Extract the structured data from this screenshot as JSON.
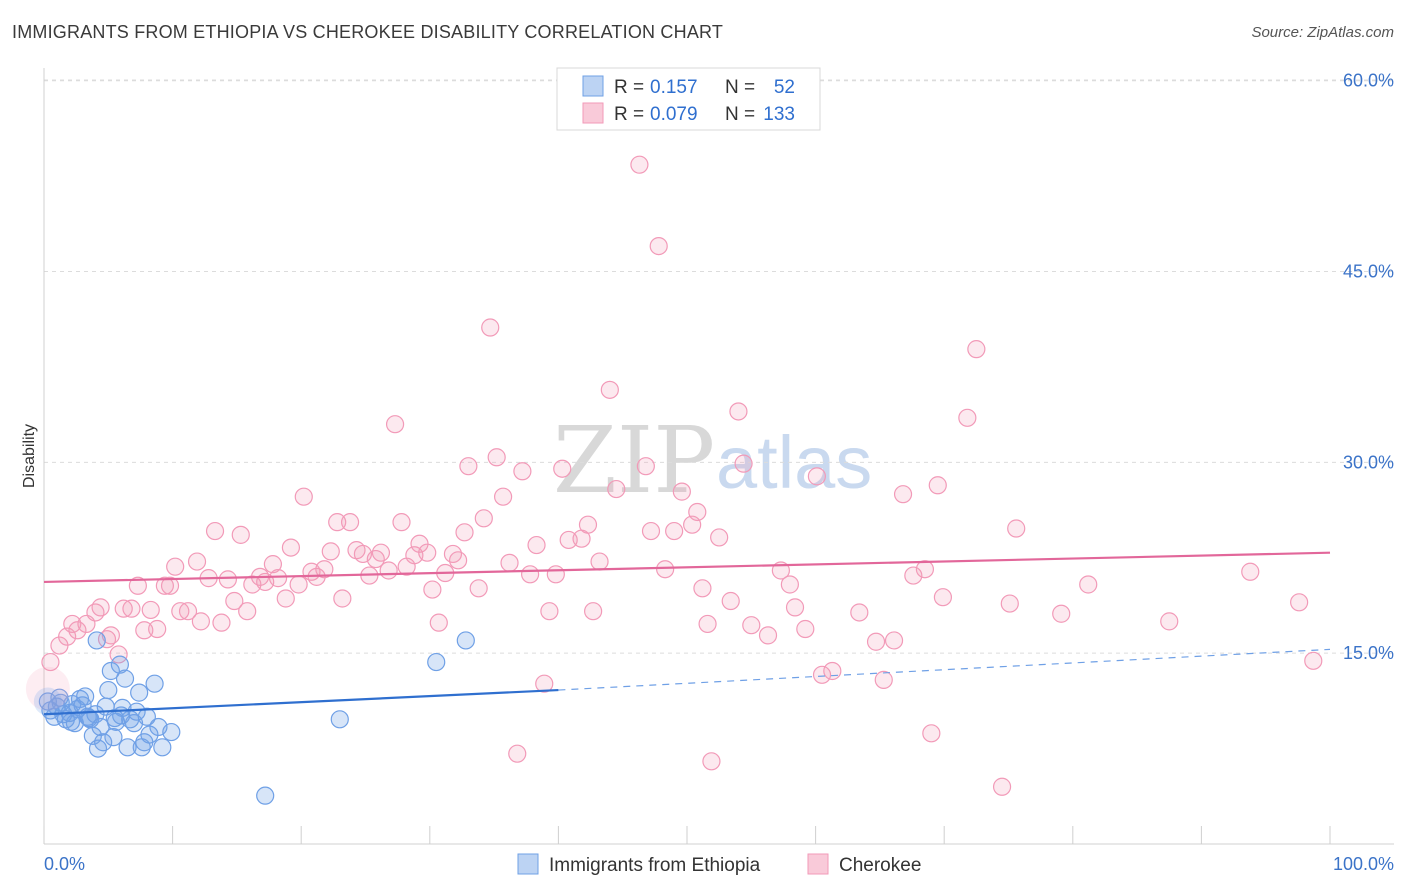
{
  "header": {
    "title": "IMMIGRANTS FROM ETHIOPIA VS CHEROKEE DISABILITY CORRELATION CHART",
    "source": "Source: ZipAtlas.com"
  },
  "watermark": {
    "zip": "ZIP",
    "atlas": "atlas"
  },
  "legend": {
    "r_label": "R =",
    "n_label": "N =",
    "rows": [
      {
        "r": "0.157",
        "n": "52",
        "color": "#6fa0e6"
      },
      {
        "r": "0.079",
        "n": "133",
        "color": "#f29ab8"
      }
    ]
  },
  "chart_data": {
    "type": "scatter",
    "title": "IMMIGRANTS FROM ETHIOPIA VS CHEROKEE DISABILITY CORRELATION CHART",
    "xlabel": "",
    "ylabel": "Disability",
    "xlim": [
      0,
      100
    ],
    "ylim": [
      0,
      61.0
    ],
    "x_tick_labels": [
      "0.0%",
      "100.0%"
    ],
    "y_ticks": [
      15,
      30,
      45,
      60
    ],
    "y_tick_labels": [
      "15.0%",
      "30.0%",
      "45.0%",
      "60.0%"
    ],
    "grid": true,
    "legend_position": "top-center",
    "series": [
      {
        "name": "Immigrants from Ethiopia",
        "color": "#6fa0e6",
        "trend": {
          "x": [
            0,
            40
          ],
          "y": [
            10.2,
            12.1
          ],
          "dashed_to": [
            100,
            15.3
          ]
        },
        "points": [
          [
            0.3,
            11.2
          ],
          [
            0.5,
            10.5
          ],
          [
            0.8,
            10.0
          ],
          [
            1.0,
            10.8
          ],
          [
            1.2,
            11.5
          ],
          [
            1.5,
            10.2
          ],
          [
            1.7,
            9.8
          ],
          [
            2.0,
            10.3
          ],
          [
            2.2,
            11.0
          ],
          [
            2.4,
            9.5
          ],
          [
            2.6,
            10.6
          ],
          [
            2.8,
            11.4
          ],
          [
            3.0,
            10.9
          ],
          [
            3.2,
            11.6
          ],
          [
            3.4,
            10.0
          ],
          [
            3.6,
            9.8
          ],
          [
            3.8,
            8.5
          ],
          [
            4.0,
            10.2
          ],
          [
            4.2,
            7.5
          ],
          [
            4.4,
            9.2
          ],
          [
            4.6,
            8.0
          ],
          [
            4.8,
            10.8
          ],
          [
            5.0,
            12.1
          ],
          [
            5.2,
            13.6
          ],
          [
            5.4,
            8.4
          ],
          [
            5.6,
            9.6
          ],
          [
            5.9,
            14.1
          ],
          [
            6.1,
            10.7
          ],
          [
            6.3,
            13.0
          ],
          [
            6.5,
            7.6
          ],
          [
            6.7,
            9.8
          ],
          [
            7.0,
            9.5
          ],
          [
            7.2,
            10.4
          ],
          [
            7.4,
            11.9
          ],
          [
            7.6,
            7.6
          ],
          [
            7.8,
            8.0
          ],
          [
            8.0,
            10.0
          ],
          [
            8.2,
            8.6
          ],
          [
            8.6,
            12.6
          ],
          [
            8.9,
            9.2
          ],
          [
            9.2,
            7.6
          ],
          [
            9.9,
            8.8
          ],
          [
            4.1,
            16.0
          ],
          [
            17.2,
            3.8
          ],
          [
            23.0,
            9.8
          ],
          [
            30.5,
            14.3
          ],
          [
            32.8,
            16.0
          ],
          [
            1.3,
            11.1
          ],
          [
            2.1,
            9.6
          ],
          [
            3.5,
            9.9
          ],
          [
            6.0,
            10.1
          ],
          [
            5.5,
            9.9
          ]
        ]
      },
      {
        "name": "Cherokee",
        "color": "#f29ab8",
        "trend": {
          "x": [
            0,
            100
          ],
          "y": [
            20.6,
            22.9
          ]
        },
        "points": [
          [
            0.5,
            14.3
          ],
          [
            1.2,
            15.6
          ],
          [
            1.8,
            16.3
          ],
          [
            2.2,
            17.3
          ],
          [
            2.6,
            16.8
          ],
          [
            3.3,
            17.3
          ],
          [
            4.0,
            18.2
          ],
          [
            4.4,
            18.6
          ],
          [
            4.9,
            16.1
          ],
          [
            5.2,
            16.4
          ],
          [
            5.8,
            14.9
          ],
          [
            6.2,
            18.5
          ],
          [
            6.8,
            18.5
          ],
          [
            7.3,
            20.3
          ],
          [
            7.8,
            16.8
          ],
          [
            8.3,
            18.4
          ],
          [
            8.8,
            16.9
          ],
          [
            9.4,
            20.3
          ],
          [
            9.8,
            20.3
          ],
          [
            10.2,
            21.8
          ],
          [
            10.6,
            18.3
          ],
          [
            11.2,
            18.3
          ],
          [
            11.9,
            22.2
          ],
          [
            12.2,
            17.5
          ],
          [
            12.8,
            20.9
          ],
          [
            13.3,
            24.6
          ],
          [
            13.8,
            17.4
          ],
          [
            14.3,
            20.8
          ],
          [
            14.8,
            19.1
          ],
          [
            15.3,
            24.3
          ],
          [
            15.8,
            18.3
          ],
          [
            16.2,
            20.4
          ],
          [
            16.8,
            21.0
          ],
          [
            17.2,
            20.6
          ],
          [
            17.8,
            22.0
          ],
          [
            18.2,
            20.9
          ],
          [
            18.8,
            19.3
          ],
          [
            19.2,
            23.3
          ],
          [
            19.8,
            20.4
          ],
          [
            20.2,
            27.3
          ],
          [
            20.8,
            21.4
          ],
          [
            21.2,
            21.0
          ],
          [
            21.8,
            21.6
          ],
          [
            22.3,
            23.0
          ],
          [
            22.8,
            25.3
          ],
          [
            23.2,
            19.3
          ],
          [
            23.8,
            25.3
          ],
          [
            24.3,
            23.1
          ],
          [
            24.8,
            22.8
          ],
          [
            25.3,
            21.1
          ],
          [
            25.8,
            22.4
          ],
          [
            26.2,
            22.9
          ],
          [
            26.8,
            21.5
          ],
          [
            27.3,
            33.0
          ],
          [
            27.8,
            25.3
          ],
          [
            28.2,
            21.8
          ],
          [
            28.8,
            22.7
          ],
          [
            29.2,
            23.6
          ],
          [
            29.8,
            22.9
          ],
          [
            30.2,
            20.0
          ],
          [
            30.7,
            17.4
          ],
          [
            31.2,
            21.3
          ],
          [
            31.8,
            22.8
          ],
          [
            32.2,
            22.3
          ],
          [
            32.7,
            24.5
          ],
          [
            33.0,
            29.7
          ],
          [
            33.8,
            20.1
          ],
          [
            34.2,
            25.6
          ],
          [
            34.7,
            40.6
          ],
          [
            35.2,
            30.4
          ],
          [
            35.7,
            27.3
          ],
          [
            36.2,
            22.1
          ],
          [
            36.8,
            7.1
          ],
          [
            37.2,
            29.3
          ],
          [
            37.8,
            21.2
          ],
          [
            38.3,
            23.5
          ],
          [
            38.9,
            12.6
          ],
          [
            39.3,
            18.3
          ],
          [
            39.8,
            21.2
          ],
          [
            40.3,
            29.5
          ],
          [
            40.8,
            23.9
          ],
          [
            41.8,
            24.0
          ],
          [
            42.3,
            25.1
          ],
          [
            42.7,
            18.3
          ],
          [
            43.2,
            22.2
          ],
          [
            44.0,
            35.7
          ],
          [
            44.5,
            27.9
          ],
          [
            46.3,
            53.4
          ],
          [
            46.8,
            29.7
          ],
          [
            47.2,
            24.6
          ],
          [
            47.8,
            47.0
          ],
          [
            48.3,
            21.6
          ],
          [
            49.0,
            24.6
          ],
          [
            49.6,
            27.7
          ],
          [
            50.4,
            25.1
          ],
          [
            50.8,
            26.1
          ],
          [
            51.2,
            20.1
          ],
          [
            51.6,
            17.3
          ],
          [
            51.9,
            6.5
          ],
          [
            52.5,
            24.1
          ],
          [
            53.4,
            19.1
          ],
          [
            54.0,
            34.0
          ],
          [
            54.4,
            29.9
          ],
          [
            55.0,
            17.2
          ],
          [
            56.3,
            16.4
          ],
          [
            57.3,
            21.5
          ],
          [
            58.0,
            20.4
          ],
          [
            58.4,
            18.6
          ],
          [
            59.2,
            16.9
          ],
          [
            60.1,
            28.9
          ],
          [
            60.5,
            13.3
          ],
          [
            61.3,
            13.6
          ],
          [
            63.4,
            18.2
          ],
          [
            64.7,
            15.9
          ],
          [
            65.3,
            12.9
          ],
          [
            66.1,
            16.0
          ],
          [
            66.8,
            27.5
          ],
          [
            67.6,
            21.1
          ],
          [
            68.5,
            21.6
          ],
          [
            69.0,
            8.7
          ],
          [
            69.5,
            28.2
          ],
          [
            69.9,
            19.4
          ],
          [
            71.8,
            33.5
          ],
          [
            72.5,
            38.9
          ],
          [
            74.5,
            4.5
          ],
          [
            75.1,
            18.9
          ],
          [
            75.6,
            24.8
          ],
          [
            79.1,
            18.1
          ],
          [
            81.2,
            20.4
          ],
          [
            87.5,
            17.5
          ],
          [
            93.8,
            21.4
          ],
          [
            97.6,
            19.0
          ],
          [
            98.7,
            14.4
          ]
        ]
      }
    ]
  }
}
